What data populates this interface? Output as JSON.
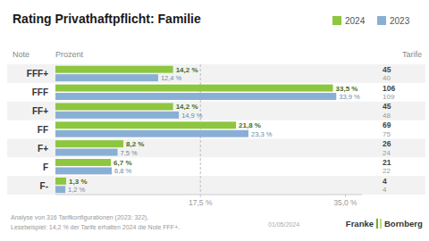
{
  "chart_data": {
    "type": "bar",
    "orientation": "horizontal",
    "title": "Rating Privathaftpflicht: Familie",
    "ylabel": "Note",
    "xlabel": "Prozent",
    "categories": [
      "FFF+",
      "FFF",
      "FF+",
      "FF",
      "F+",
      "F",
      "F-"
    ],
    "series": [
      {
        "name": "2024",
        "color": "#8dc63f",
        "values": [
          14.2,
          33.5,
          14.2,
          21.8,
          8.2,
          6.7,
          1.3
        ],
        "value_labels": [
          "14,2 %",
          "33,5 %",
          "14,2 %",
          "21,8 %",
          "8,2 %",
          "6,7 %",
          "1,3 %"
        ],
        "tarife": [
          45,
          106,
          45,
          69,
          26,
          21,
          4
        ]
      },
      {
        "name": "2023",
        "color": "#8aafd4",
        "values": [
          12.4,
          33.9,
          14.9,
          23.3,
          7.5,
          6.8,
          1.2
        ],
        "value_labels": [
          "12,4 %",
          "33,9 %",
          "14,9 %",
          "23,3 %",
          "7,5 %",
          "6,8 %",
          "1,2 %"
        ],
        "tarife": [
          40,
          109,
          48,
          75,
          24,
          22,
          4
        ]
      }
    ],
    "xlim": [
      0,
      37
    ],
    "xticks": [
      {
        "value": 17.5,
        "label": "17,5 %"
      },
      {
        "value": 35.0,
        "label": "35,0 %"
      }
    ],
    "reference_line": 17.5,
    "grid": false,
    "data_labels": true,
    "legend": "top right",
    "annotations": [
      "Tarife",
      "Analyse von 316 Tarifkonfigurationen (2023: 322).",
      "Lesebeispiel: 14,2 % der Tarife erhalten 2024 die Note FFF+.",
      "01/05/2024",
      "Franke",
      "Bornberg"
    ]
  }
}
